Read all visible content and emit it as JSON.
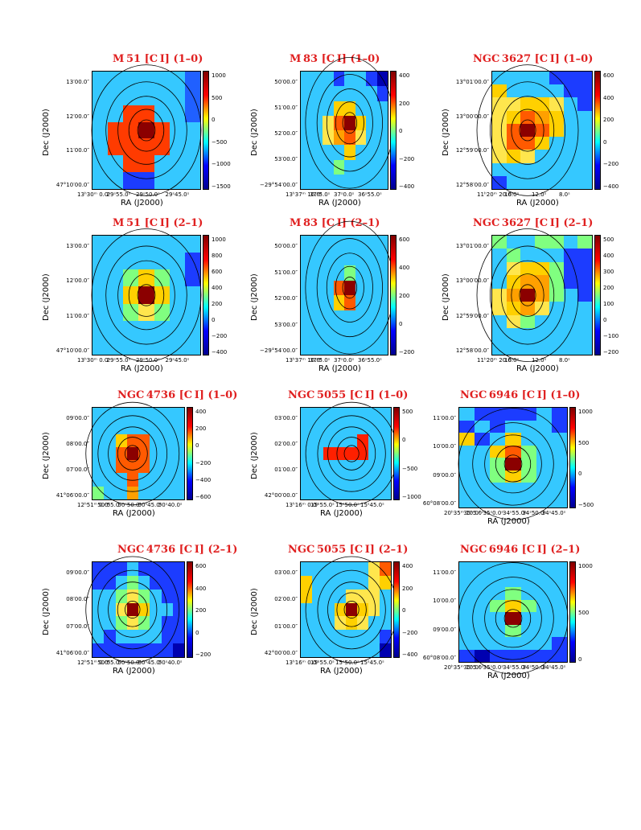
{
  "panels": [
    {
      "id": "m51-10",
      "title": "M 51 [C I] (1–0)",
      "cols": 7,
      "rows": 7,
      "cb_ticks": [
        "1000",
        "500",
        "0",
        "−500",
        "−1000",
        "−1500"
      ],
      "y_ticks": [
        "13′00.0″",
        "12′00.0″",
        "11′00.0″",
        "47°10′00.0″"
      ],
      "x_ticks": [
        "13ʰ30ᵐ 0.0ˢ",
        "29ˢ55.0ˢ",
        "29ˢ50.0ˢ",
        "29ˢ45.0ˢ"
      ],
      "xlabel": "RA (J2000)",
      "ylabel": "Dec (J2000)",
      "colors": [
        "#35c8ff",
        "#35c8ff",
        "#35c8ff",
        "#35c8ff",
        "#35c8ff",
        "#35c8ff",
        "#2060ff",
        "#35c8ff",
        "#35c8ff",
        "#35c8ff",
        "#35c8ff",
        "#35c8ff",
        "#35c8ff",
        "#2060ff",
        "#35c8ff",
        "#35c8ff",
        "#ff3b00",
        "#ff3b00",
        "#35c8ff",
        "#35c8ff",
        "#2060ff",
        "#35c8ff",
        "#ff3b00",
        "#ff3b00",
        "#8b0000",
        "#ff3b00",
        "#35c8ff",
        "#35c8ff",
        "#35c8ff",
        "#ff3b00",
        "#ff3b00",
        "#ff3b00",
        "#ff3b00",
        "#35c8ff",
        "#35c8ff",
        "#35c8ff",
        "#35c8ff",
        "#ff3b00",
        "#ff3b00",
        "#35c8ff",
        "#35c8ff",
        "#35c8ff",
        "#35c8ff",
        "#35c8ff",
        "#1c3cff",
        "#1c3cff",
        "#35c8ff",
        "#35c8ff",
        "#35c8ff"
      ]
    },
    {
      "id": "m83-10",
      "title": "M 83 [C I] (1–0)",
      "cols": 8,
      "rows": 8,
      "cb_ticks": [
        "400",
        "200",
        "0",
        "−200",
        "−400"
      ],
      "y_ticks": [
        "50′00.0″",
        "51′00.0″",
        "52′00.0″",
        "53′00.0″",
        "−29°54′00.0″"
      ],
      "x_ticks": [
        "13ʰ37ᵐ 10.0ˢ",
        "37ˢ5.0ˢ",
        "37ˢ0.0ˢ",
        "36ˢ55.0ˢ"
      ],
      "xlabel": "RA (J2000)",
      "ylabel": "Dec (J2000)",
      "colors": [
        "#35c8ff",
        "#35c8ff",
        "#35c8ff",
        "#1c3cff",
        "#35c8ff",
        "#35c8ff",
        "#1c3cff",
        "#0000b0",
        "#35c8ff",
        "#35c8ff",
        "#35c8ff",
        "#35c8ff",
        "#35c8ff",
        "#35c8ff",
        "#35c8ff",
        "#1c3cff",
        "#35c8ff",
        "#35c8ff",
        "#35c8ff",
        "#ffd000",
        "#ffd000",
        "#35c8ff",
        "#35c8ff",
        "#35c8ff",
        "#35c8ff",
        "#35c8ff",
        "#ffe64d",
        "#ff5a00",
        "#8b0000",
        "#ffd000",
        "#35c8ff",
        "#35c8ff",
        "#35c8ff",
        "#35c8ff",
        "#ffe64d",
        "#ffa000",
        "#ff5a00",
        "#ffe64d",
        "#35c8ff",
        "#35c8ff",
        "#35c8ff",
        "#35c8ff",
        "#35c8ff",
        "#35c8ff",
        "#ffd000",
        "#35c8ff",
        "#35c8ff",
        "#35c8ff",
        "#35c8ff",
        "#35c8ff",
        "#35c8ff",
        "#80ff80",
        "#35c8ff",
        "#35c8ff",
        "#35c8ff",
        "#35c8ff",
        "#35c8ff",
        "#35c8ff",
        "#35c8ff",
        "#35c8ff",
        "#35c8ff",
        "#35c8ff",
        "#35c8ff",
        "#35c8ff"
      ]
    },
    {
      "id": "ngc3627-10",
      "title": "NGC 3627 [C I] (1–0)",
      "cols": 7,
      "rows": 9,
      "cb_ticks": [
        "600",
        "400",
        "200",
        "0",
        "−200",
        "−400"
      ],
      "y_ticks": [
        "13°01′00.0″",
        "13°00′00.0″",
        "12°59′00.0″",
        "12°58′00.0″"
      ],
      "x_ticks": [
        "11ʰ20ᵐ 20.0ˢ",
        "16.0ˢ",
        "12.0ˢ",
        "8.0ˢ"
      ],
      "xlabel": "RA (J2000)",
      "ylabel": "Dec (J2000)",
      "colors": [
        "#35c8ff",
        "#35c8ff",
        "#35c8ff",
        "#35c8ff",
        "#1c3cff",
        "#1c3cff",
        "#1c3cff",
        "#ffd000",
        "#35c8ff",
        "#35c8ff",
        "#35c8ff",
        "#35c8ff",
        "#1c3cff",
        "#1c3cff",
        "#ffe64d",
        "#ffe64d",
        "#ffd000",
        "#ffd000",
        "#ffe64d",
        "#35c8ff",
        "#1c3cff",
        "#ffe64d",
        "#ffd000",
        "#ff5a00",
        "#ffa000",
        "#ffd000",
        "#35c8ff",
        "#35c8ff",
        "#ffe64d",
        "#ff5a00",
        "#8b0000",
        "#ff5a00",
        "#ffd000",
        "#35c8ff",
        "#35c8ff",
        "#ffe64d",
        "#ff5a00",
        "#ff5a00",
        "#ffd000",
        "#35c8ff",
        "#35c8ff",
        "#35c8ff",
        "#ffe64d",
        "#ffd000",
        "#ffe64d",
        "#35c8ff",
        "#35c8ff",
        "#35c8ff",
        "#35c8ff",
        "#35c8ff",
        "#35c8ff",
        "#35c8ff",
        "#35c8ff",
        "#35c8ff",
        "#35c8ff",
        "#35c8ff",
        "#1c3cff",
        "#35c8ff",
        "#35c8ff",
        "#35c8ff",
        "#35c8ff",
        "#35c8ff",
        "#35c8ff"
      ]
    },
    {
      "id": "m51-21",
      "title": "M 51 [C I] (2–1)",
      "cols": 7,
      "rows": 7,
      "cb_ticks": [
        "1000",
        "800",
        "600",
        "400",
        "200",
        "0",
        "−200",
        "−400"
      ],
      "y_ticks": [
        "13′00.0″",
        "12′00.0″",
        "11′00.0″",
        "47°10′00.0″"
      ],
      "x_ticks": [
        "13ʰ30ᵐ 0.0ˢ",
        "29ˢ55.0ˢ",
        "29ˢ50.0ˢ",
        "29ˢ45.0ˢ"
      ],
      "xlabel": "RA (J2000)",
      "ylabel": "Dec (J2000)",
      "colors": [
        "#35c8ff",
        "#35c8ff",
        "#35c8ff",
        "#35c8ff",
        "#35c8ff",
        "#35c8ff",
        "#35c8ff",
        "#35c8ff",
        "#35c8ff",
        "#35c8ff",
        "#35c8ff",
        "#35c8ff",
        "#35c8ff",
        "#1c3cff",
        "#35c8ff",
        "#35c8ff",
        "#80ff80",
        "#ffd000",
        "#80ff80",
        "#35c8ff",
        "#1c3cff",
        "#35c8ff",
        "#35c8ff",
        "#ffd000",
        "#8b0000",
        "#ffd000",
        "#35c8ff",
        "#35c8ff",
        "#35c8ff",
        "#35c8ff",
        "#80ff80",
        "#ffe64d",
        "#80ff80",
        "#35c8ff",
        "#35c8ff",
        "#35c8ff",
        "#35c8ff",
        "#35c8ff",
        "#35c8ff",
        "#35c8ff",
        "#35c8ff",
        "#35c8ff",
        "#35c8ff",
        "#35c8ff",
        "#35c8ff",
        "#35c8ff",
        "#35c8ff",
        "#35c8ff",
        "#35c8ff"
      ]
    },
    {
      "id": "m83-21",
      "title": "M 83 [C I] (2–1)",
      "cols": 8,
      "rows": 8,
      "cb_ticks": [
        "600",
        "400",
        "200",
        "0",
        "−200"
      ],
      "y_ticks": [
        "50′00.0″",
        "51′00.0″",
        "52′00.0″",
        "53′00.0″",
        "−29°54′00.0″"
      ],
      "x_ticks": [
        "13ʰ37ᵐ 10.0ˢ",
        "37ˢ5.0ˢ",
        "37ˢ0.0ˢ",
        "36ˢ55.0ˢ"
      ],
      "xlabel": "RA (J2000)",
      "ylabel": "Dec (J2000)",
      "colors": [
        "#35c8ff",
        "#35c8ff",
        "#35c8ff",
        "#35c8ff",
        "#35c8ff",
        "#35c8ff",
        "#35c8ff",
        "#35c8ff",
        "#35c8ff",
        "#35c8ff",
        "#35c8ff",
        "#35c8ff",
        "#35c8ff",
        "#35c8ff",
        "#35c8ff",
        "#35c8ff",
        "#35c8ff",
        "#35c8ff",
        "#35c8ff",
        "#35c8ff",
        "#80ff80",
        "#35c8ff",
        "#35c8ff",
        "#35c8ff",
        "#35c8ff",
        "#35c8ff",
        "#35c8ff",
        "#ff5a00",
        "#8b0000",
        "#35c8ff",
        "#35c8ff",
        "#35c8ff",
        "#35c8ff",
        "#35c8ff",
        "#35c8ff",
        "#ffd000",
        "#ff5a00",
        "#35c8ff",
        "#35c8ff",
        "#35c8ff",
        "#35c8ff",
        "#35c8ff",
        "#35c8ff",
        "#35c8ff",
        "#35c8ff",
        "#35c8ff",
        "#35c8ff",
        "#35c8ff",
        "#35c8ff",
        "#35c8ff",
        "#35c8ff",
        "#35c8ff",
        "#35c8ff",
        "#35c8ff",
        "#35c8ff",
        "#35c8ff",
        "#35c8ff",
        "#35c8ff",
        "#35c8ff",
        "#35c8ff",
        "#35c8ff",
        "#35c8ff",
        "#35c8ff",
        "#35c8ff"
      ]
    },
    {
      "id": "ngc3627-21",
      "title": "NGC 3627 [C I] (2–1)",
      "cols": 7,
      "rows": 9,
      "cb_ticks": [
        "500",
        "400",
        "300",
        "200",
        "100",
        "0",
        "−100",
        "−200"
      ],
      "y_ticks": [
        "13°01′00.0″",
        "13°00′00.0″",
        "12°59′00.0″",
        "12°58′00.0″"
      ],
      "x_ticks": [
        "11ʰ20ᵐ 20.0ˢ",
        "16.0ˢ",
        "12.0ˢ",
        "8.0ˢ"
      ],
      "xlabel": "RA (J2000)",
      "ylabel": "Dec (J2000)",
      "colors": [
        "#80ff80",
        "#35c8ff",
        "#35c8ff",
        "#80ff80",
        "#80ff80",
        "#35c8ff",
        "#80ff80",
        "#35c8ff",
        "#80ff80",
        "#35c8ff",
        "#35c8ff",
        "#35c8ff",
        "#1c3cff",
        "#1c3cff",
        "#35c8ff",
        "#ffe64d",
        "#ffd000",
        "#ffd000",
        "#80ff80",
        "#1c3cff",
        "#1c3cff",
        "#35c8ff",
        "#ffd000",
        "#ffa000",
        "#ffa000",
        "#80ff80",
        "#1c3cff",
        "#1c3cff",
        "#ffe64d",
        "#ffa000",
        "#8b0000",
        "#ffa000",
        "#80ff80",
        "#35c8ff",
        "#1c3cff",
        "#ffe64d",
        "#ffd000",
        "#ffa000",
        "#ffe64d",
        "#35c8ff",
        "#35c8ff",
        "#35c8ff",
        "#35c8ff",
        "#ffe64d",
        "#80ff80",
        "#35c8ff",
        "#35c8ff",
        "#35c8ff",
        "#35c8ff",
        "#35c8ff",
        "#35c8ff",
        "#35c8ff",
        "#35c8ff",
        "#35c8ff",
        "#35c8ff",
        "#35c8ff",
        "#35c8ff",
        "#35c8ff",
        "#35c8ff",
        "#35c8ff",
        "#35c8ff",
        "#35c8ff",
        "#35c8ff"
      ]
    },
    {
      "id": "ngc4736-10",
      "title": "NGC 4736 [C I] (1–0)",
      "cols": 8,
      "rows": 7,
      "cb_ticks": [
        "400",
        "200",
        "0",
        "−200",
        "−400",
        "−600"
      ],
      "y_ticks": [
        "09′00.0″",
        "08′00.0″",
        "07′00.0″",
        "41°06′00.0″"
      ],
      "x_ticks": [
        "12ʰ51ᵐ 0.0ˢ",
        "50ˢ55.0ˢ",
        "50ˢ50.0ˢ",
        "50ˢ45.0ˢ",
        "50ˢ40.0ˢ"
      ],
      "xlabel": "RA (J2000)",
      "ylabel": "Dec (J2000)",
      "colors": [
        "#35c8ff",
        "#35c8ff",
        "#35c8ff",
        "#35c8ff",
        "#35c8ff",
        "#35c8ff",
        "#35c8ff",
        "#35c8ff",
        "#35c8ff",
        "#35c8ff",
        "#35c8ff",
        "#35c8ff",
        "#35c8ff",
        "#35c8ff",
        "#35c8ff",
        "#35c8ff",
        "#35c8ff",
        "#35c8ff",
        "#ffd000",
        "#ff5a00",
        "#ff5a00",
        "#35c8ff",
        "#35c8ff",
        "#35c8ff",
        "#35c8ff",
        "#35c8ff",
        "#ff5a00",
        "#8b0000",
        "#ff5a00",
        "#35c8ff",
        "#35c8ff",
        "#35c8ff",
        "#35c8ff",
        "#35c8ff",
        "#ff5a00",
        "#ff5a00",
        "#ff5a00",
        "#35c8ff",
        "#35c8ff",
        "#35c8ff",
        "#35c8ff",
        "#35c8ff",
        "#35c8ff",
        "#ff5a00",
        "#35c8ff",
        "#35c8ff",
        "#35c8ff",
        "#35c8ff",
        "#80ff80",
        "#35c8ff",
        "#35c8ff",
        "#ffa000",
        "#35c8ff",
        "#35c8ff",
        "#35c8ff",
        "#35c8ff"
      ]
    },
    {
      "id": "ngc5055-10",
      "title": "NGC 5055 [C I] (1–0)",
      "cols": 8,
      "rows": 7,
      "cb_ticks": [
        "500",
        "0",
        "−500",
        "−1000"
      ],
      "y_ticks": [
        "03′00.0″",
        "02′00.0″",
        "01′00.0″",
        "42°00′00.0″"
      ],
      "x_ticks": [
        "13ʰ16ᵐ 0.0ˢ",
        "15ˢ55.0ˢ",
        "15ˢ50.0ˢ",
        "15ˢ45.0ˢ"
      ],
      "xlabel": "RA (J2000)",
      "ylabel": "Dec (J2000)",
      "colors": [
        "#35c8ff",
        "#35c8ff",
        "#35c8ff",
        "#35c8ff",
        "#35c8ff",
        "#35c8ff",
        "#35c8ff",
        "#35c8ff",
        "#35c8ff",
        "#35c8ff",
        "#35c8ff",
        "#35c8ff",
        "#35c8ff",
        "#35c8ff",
        "#35c8ff",
        "#35c8ff",
        "#35c8ff",
        "#35c8ff",
        "#35c8ff",
        "#35c8ff",
        "#35c8ff",
        "#ff2000",
        "#35c8ff",
        "#35c8ff",
        "#35c8ff",
        "#35c8ff",
        "#ff2000",
        "#ff2000",
        "#ff2000",
        "#ff2000",
        "#35c8ff",
        "#35c8ff",
        "#35c8ff",
        "#35c8ff",
        "#35c8ff",
        "#35c8ff",
        "#35c8ff",
        "#35c8ff",
        "#35c8ff",
        "#35c8ff",
        "#35c8ff",
        "#35c8ff",
        "#35c8ff",
        "#35c8ff",
        "#35c8ff",
        "#35c8ff",
        "#35c8ff",
        "#35c8ff",
        "#35c8ff",
        "#35c8ff",
        "#35c8ff",
        "#35c8ff",
        "#35c8ff",
        "#35c8ff",
        "#35c8ff",
        "#35c8ff"
      ]
    },
    {
      "id": "ngc6946-10",
      "title": "NGC 6946 [C I] (1–0)",
      "cols": 7,
      "rows": 8,
      "cb_ticks": [
        "1000",
        "500",
        "0",
        "−500"
      ],
      "y_ticks": [
        "11′00.0″",
        "10′00.0″",
        "09′00.0″",
        "60°08′00.0″"
      ],
      "x_ticks": [
        "20ʰ35ᵐ 10.0ˢ",
        "35ˢ5.0ˢ",
        "35ˢ0.0ˢ",
        "34ˢ55.0ˢ",
        "34ˢ50.0ˢ",
        "34ˢ45.0ˢ"
      ],
      "xlabel": "RA (J2000)",
      "ylabel": "",
      "colors": [
        "#35c8ff",
        "#1c3cff",
        "#1c3cff",
        "#1c3cff",
        "#1c3cff",
        "#35c8ff",
        "#1c3cff",
        "#1c3cff",
        "#35c8ff",
        "#1c3cff",
        "#35c8ff",
        "#35c8ff",
        "#35c8ff",
        "#1c3cff",
        "#ffd000",
        "#1c3cff",
        "#35c8ff",
        "#ffd000",
        "#35c8ff",
        "#35c8ff",
        "#35c8ff",
        "#35c8ff",
        "#35c8ff",
        "#ffd000",
        "#ff5a00",
        "#80ff80",
        "#35c8ff",
        "#35c8ff",
        "#35c8ff",
        "#35c8ff",
        "#80ff80",
        "#8b0000",
        "#80ff80",
        "#35c8ff",
        "#35c8ff",
        "#35c8ff",
        "#35c8ff",
        "#80ff80",
        "#ffd000",
        "#80ff80",
        "#35c8ff",
        "#35c8ff",
        "#35c8ff",
        "#35c8ff",
        "#35c8ff",
        "#35c8ff",
        "#35c8ff",
        "#35c8ff",
        "#35c8ff",
        "#35c8ff",
        "#35c8ff",
        "#35c8ff",
        "#35c8ff",
        "#35c8ff",
        "#35c8ff",
        "#35c8ff"
      ]
    },
    {
      "id": "ngc4736-21",
      "title": "NGC 4736 [C I] (2–1)",
      "cols": 8,
      "rows": 7,
      "cb_ticks": [
        "600",
        "400",
        "200",
        "0",
        "−200"
      ],
      "y_ticks": [
        "09′00.0″",
        "08′00.0″",
        "07′00.0″",
        "41°06′00.0″"
      ],
      "x_ticks": [
        "12ʰ51ᵐ 0.0ˢ",
        "50ˢ55.0ˢ",
        "50ˢ50.0ˢ",
        "50ˢ45.0ˢ",
        "50ˢ40.0ˢ"
      ],
      "xlabel": "RA (J2000)",
      "ylabel": "Dec (J2000)",
      "colors": [
        "#1c3cff",
        "#1c3cff",
        "#1c3cff",
        "#35c8ff",
        "#1c3cff",
        "#1c3cff",
        "#1c3cff",
        "#1c3cff",
        "#1c3cff",
        "#1c3cff",
        "#35c8ff",
        "#80ff80",
        "#35c8ff",
        "#1c3cff",
        "#1c3cff",
        "#1c3cff",
        "#35c8ff",
        "#35c8ff",
        "#80ff80",
        "#ffe64d",
        "#80ff80",
        "#35c8ff",
        "#1c3cff",
        "#1c3cff",
        "#35c8ff",
        "#35c8ff",
        "#ffe64d",
        "#8b0000",
        "#ffd000",
        "#35c8ff",
        "#35c8ff",
        "#1c3cff",
        "#35c8ff",
        "#35c8ff",
        "#80ff80",
        "#ffe64d",
        "#80ff80",
        "#35c8ff",
        "#1c3cff",
        "#1c3cff",
        "#35c8ff",
        "#1c3cff",
        "#35c8ff",
        "#35c8ff",
        "#35c8ff",
        "#35c8ff",
        "#1c3cff",
        "#1c3cff",
        "#1c3cff",
        "#1c3cff",
        "#1c3cff",
        "#1c3cff",
        "#1c3cff",
        "#1c3cff",
        "#1c3cff",
        "#0000b0"
      ]
    },
    {
      "id": "ngc5055-21",
      "title": "NGC 5055 [C I] (2–1)",
      "cols": 8,
      "rows": 7,
      "cb_ticks": [
        "400",
        "200",
        "0",
        "−200",
        "−400"
      ],
      "y_ticks": [
        "03′00.0″",
        "02′00.0″",
        "01′00.0″",
        "42°00′00.0″"
      ],
      "x_ticks": [
        "13ʰ16ᵐ 0.0ˢ",
        "15ˢ55.0ˢ",
        "15ˢ50.0ˢ",
        "15ˢ45.0ˢ"
      ],
      "xlabel": "RA (J2000)",
      "ylabel": "Dec (J2000)",
      "colors": [
        "#35c8ff",
        "#35c8ff",
        "#35c8ff",
        "#35c8ff",
        "#35c8ff",
        "#35c8ff",
        "#ffe64d",
        "#ff5a00",
        "#ffd000",
        "#35c8ff",
        "#35c8ff",
        "#35c8ff",
        "#35c8ff",
        "#35c8ff",
        "#ffe64d",
        "#ffd000",
        "#ffd000",
        "#35c8ff",
        "#35c8ff",
        "#35c8ff",
        "#ffe64d",
        "#ffe64d",
        "#ffe64d",
        "#35c8ff",
        "#35c8ff",
        "#35c8ff",
        "#35c8ff",
        "#ffd000",
        "#8b0000",
        "#ffd000",
        "#ffe64d",
        "#35c8ff",
        "#35c8ff",
        "#35c8ff",
        "#35c8ff",
        "#ffe64d",
        "#ffd000",
        "#ffe64d",
        "#35c8ff",
        "#35c8ff",
        "#35c8ff",
        "#35c8ff",
        "#35c8ff",
        "#35c8ff",
        "#35c8ff",
        "#35c8ff",
        "#35c8ff",
        "#1c3cff",
        "#35c8ff",
        "#35c8ff",
        "#35c8ff",
        "#35c8ff",
        "#35c8ff",
        "#35c8ff",
        "#35c8ff",
        "#0000b0"
      ]
    },
    {
      "id": "ngc6946-21",
      "title": "NGC 6946 [C I] (2–1)",
      "cols": 7,
      "rows": 8,
      "cb_ticks": [
        "1000",
        "500",
        "0"
      ],
      "y_ticks": [
        "11′00.0″",
        "10′00.0″",
        "09′00.0″",
        "60°08′00.0″"
      ],
      "x_ticks": [
        "20ʰ35ᵐ 10.0ˢ",
        "35ˢ5.0ˢ",
        "35ˢ0.0ˢ",
        "34ˢ55.0ˢ",
        "34ˢ50.0ˢ",
        "34ˢ45.0ˢ"
      ],
      "xlabel": "RA (J2000)",
      "ylabel": "",
      "colors": [
        "#35c8ff",
        "#35c8ff",
        "#35c8ff",
        "#35c8ff",
        "#35c8ff",
        "#35c8ff",
        "#35c8ff",
        "#35c8ff",
        "#35c8ff",
        "#35c8ff",
        "#35c8ff",
        "#35c8ff",
        "#35c8ff",
        "#35c8ff",
        "#35c8ff",
        "#35c8ff",
        "#35c8ff",
        "#80ff80",
        "#35c8ff",
        "#35c8ff",
        "#35c8ff",
        "#35c8ff",
        "#35c8ff",
        "#80ff80",
        "#ffd000",
        "#80ff80",
        "#35c8ff",
        "#35c8ff",
        "#35c8ff",
        "#35c8ff",
        "#35c8ff",
        "#8b0000",
        "#35c8ff",
        "#35c8ff",
        "#35c8ff",
        "#35c8ff",
        "#35c8ff",
        "#35c8ff",
        "#80ff80",
        "#35c8ff",
        "#35c8ff",
        "#35c8ff",
        "#35c8ff",
        "#35c8ff",
        "#35c8ff",
        "#35c8ff",
        "#35c8ff",
        "#35c8ff",
        "#1c3cff",
        "#1c3cff",
        "#0000b0",
        "#1c3cff",
        "#1c3cff",
        "#1c3cff",
        "#1c3cff",
        "#1c3cff"
      ]
    }
  ]
}
